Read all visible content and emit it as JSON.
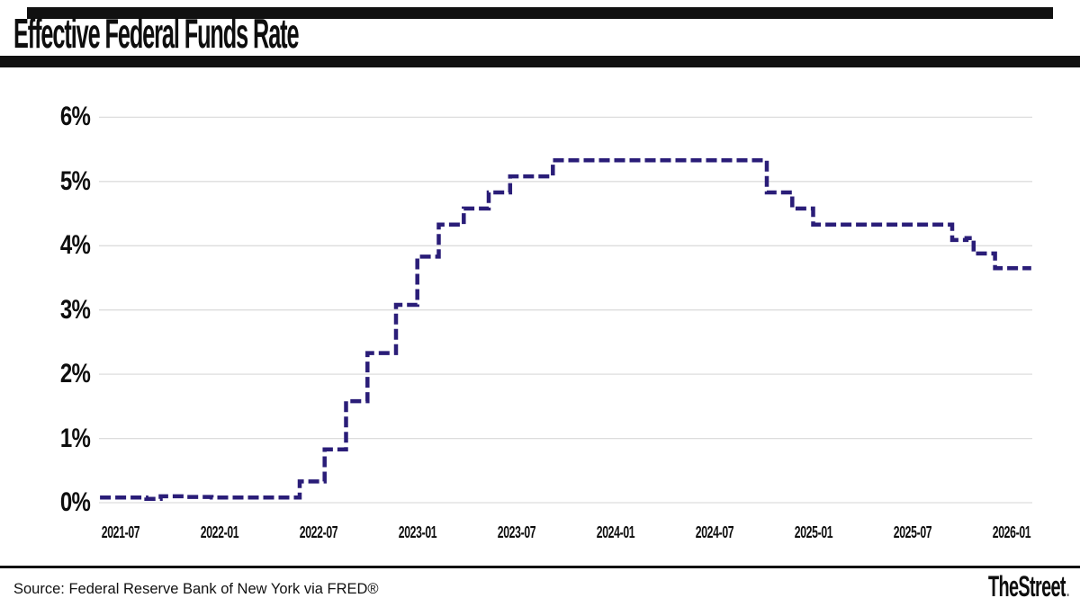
{
  "header": {
    "title": "Effective Federal Funds Rate"
  },
  "footer": {
    "source": "Source: Federal Reserve Bank of New York via FRED®",
    "brand": "TheStreet",
    "brand_dot": "."
  },
  "chart_data": {
    "type": "line",
    "step": "post",
    "title": "Effective Federal Funds Rate",
    "xlabel": "",
    "ylabel": "",
    "ylim": [
      0,
      6
    ],
    "x_range": [
      "2021-02",
      "2026-02"
    ],
    "grid": "horizontal-only",
    "legend_position": "none",
    "line_color": "#2a1d78",
    "line_style": "dashed",
    "grid_color": "#dddddd",
    "y_ticks": [
      "0%",
      "1%",
      "2%",
      "3%",
      "4%",
      "5%",
      "6%"
    ],
    "y_tick_values": [
      0,
      1,
      2,
      3,
      4,
      5,
      6
    ],
    "x_ticks": [
      "2021-07",
      "2022-01",
      "2022-07",
      "2023-01",
      "2023-07",
      "2024-01",
      "2024-07",
      "2025-01",
      "2025-07",
      "2026-01"
    ],
    "series": [
      {
        "name": "Effective Federal Funds Rate (%)",
        "points": [
          [
            "2021-02-18",
            0.08
          ],
          [
            "2021-05-20",
            0.06
          ],
          [
            "2021-06-17",
            0.1
          ],
          [
            "2021-08-01",
            0.09
          ],
          [
            "2021-09-25",
            0.08
          ],
          [
            "2022-03-17",
            0.33
          ],
          [
            "2022-05-05",
            0.83
          ],
          [
            "2022-06-16",
            1.58
          ],
          [
            "2022-07-28",
            2.33
          ],
          [
            "2022-09-22",
            3.08
          ],
          [
            "2022-11-03",
            3.83
          ],
          [
            "2022-12-15",
            4.33
          ],
          [
            "2023-02-02",
            4.58
          ],
          [
            "2023-03-23",
            4.83
          ],
          [
            "2023-05-04",
            5.08
          ],
          [
            "2023-07-27",
            5.33
          ],
          [
            "2024-09-19",
            4.83
          ],
          [
            "2024-11-08",
            4.58
          ],
          [
            "2024-12-19",
            4.33
          ],
          [
            "2025-09-18",
            4.09
          ],
          [
            "2025-10-16",
            4.12
          ],
          [
            "2025-10-30",
            3.88
          ],
          [
            "2025-12-11",
            3.65
          ],
          [
            "2026-02-20",
            3.65
          ]
        ]
      }
    ]
  }
}
